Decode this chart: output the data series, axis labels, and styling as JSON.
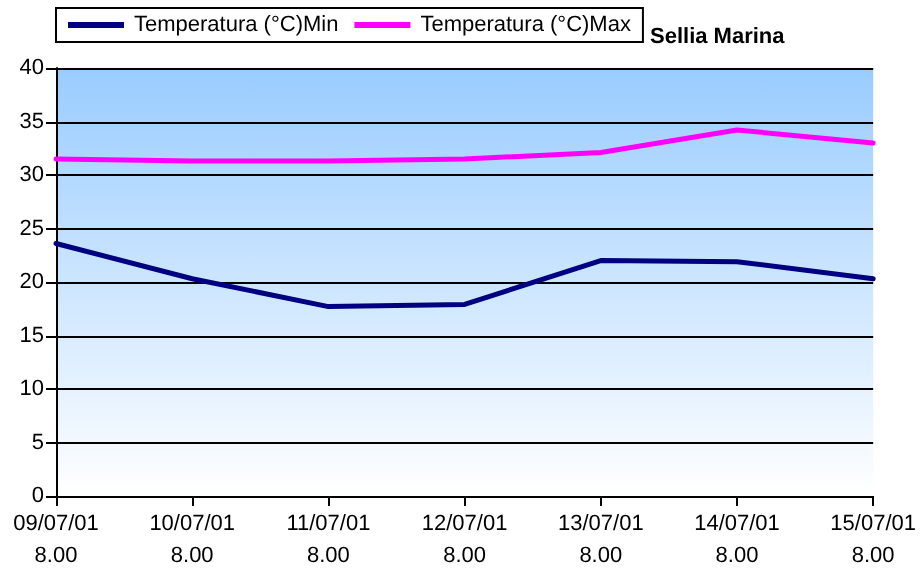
{
  "chart_data": {
    "type": "line",
    "title": "Sellia Marina",
    "categories": [
      "09/07/01\n8.00",
      "10/07/01\n8.00",
      "11/07/01\n8.00",
      "12/07/01\n8.00",
      "13/07/01\n8.00",
      "14/07/01\n8.00",
      "15/07/01\n8.00"
    ],
    "series": [
      {
        "name": "Temperatura (°C)Min",
        "color": "#000080",
        "values": [
          23.6,
          20.3,
          17.7,
          17.9,
          22.0,
          21.9,
          20.3
        ]
      },
      {
        "name": "Temperatura (°C)Max",
        "color": "#ff00ff",
        "values": [
          31.5,
          31.3,
          31.3,
          31.5,
          32.1,
          34.2,
          33.0
        ]
      }
    ],
    "ylim": [
      0,
      40
    ],
    "yticks": [
      0,
      5,
      10,
      15,
      20,
      25,
      30,
      35,
      40
    ],
    "grid": "y",
    "legend": "top left",
    "marker": "none",
    "line_style": "solid"
  }
}
